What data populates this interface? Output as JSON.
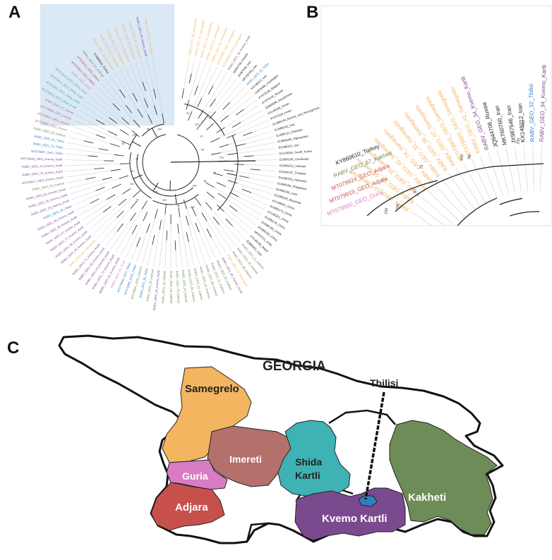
{
  "panels": {
    "a": "A",
    "b": "B",
    "c": "C"
  },
  "colors": {
    "samegrelo": "#f3b560",
    "imereti": "#b4706b",
    "guria": "#d97cc3",
    "adjara": "#c8504c",
    "shida_kartli": "#3fb2b3",
    "kvemo_kartli": "#7b4a8e",
    "kakheti": "#6e8c58",
    "tbilisi": "#2e7fc4",
    "reference": "#222222",
    "highlight": "#dbe8f6"
  },
  "map": {
    "country": "GEORGIA",
    "regions": {
      "samegrelo": "Samegrelo",
      "imereti": "Imereti",
      "guria": "Guria",
      "adjara": "Adjara",
      "shida_kartli": "Shida\nKartli",
      "shida_kartli_l1": "Shida",
      "shida_kartli_l2": "Kartli",
      "kvemo_kartli": "Kvemo Kartli",
      "kakheti": "Kakheti",
      "tbilisi": "Tbilisi"
    }
  },
  "tree_a": {
    "tips": [
      {
        "label": "RABV_GEO_60_Samegrelo",
        "region": "samegrelo"
      },
      {
        "label": "RABV_GEO_34_Kvemo_Kartli",
        "region": "kvemo_kartli"
      },
      {
        "label": "RABV_GEO_36_Samegrelo",
        "region": "samegrelo"
      },
      {
        "label": "RABV_GEO_33_Samegrelo",
        "region": "samegrelo"
      },
      {
        "label": "RABV_GEO_74_Samegrelo",
        "region": "samegrelo"
      },
      {
        "label": "RABV_GEO_56_Samegrelo",
        "region": "samegrelo"
      },
      {
        "label": "RABV_GEO_42_Samegrelo",
        "region": "samegrelo"
      },
      {
        "label": "RABV_GEO_10_Samegrelo",
        "region": "samegrelo"
      },
      {
        "label": "KY860610_Turkey",
        "region": "reference"
      },
      {
        "label": "RABV_GEO_67_Kakheti",
        "region": "kakheti"
      },
      {
        "label": "MT079924_GEO_Adjara",
        "region": "adjara"
      },
      {
        "label": "MT079919_GEO_Adjara",
        "region": "adjara"
      },
      {
        "label": "RABV_GEO_Guria",
        "region": "guria"
      },
      {
        "label": "MT079913_GEO_Shida_Kartli",
        "region": "shida_kartli"
      },
      {
        "label": "MT079912_GEO_Shida_Kartli",
        "region": "shida_kartli"
      },
      {
        "label": "MT079911_GEO_Shida_Kartli",
        "region": "shida_kartli"
      },
      {
        "label": "MT079910_GEO_Shida_Kartli",
        "region": "shida_kartli"
      },
      {
        "label": "RABV_GEO_97_Imereti",
        "region": "imereti"
      },
      {
        "label": "MT079895_GEO_Imereti",
        "region": "imereti"
      },
      {
        "label": "MT079904_GEO_Imereti",
        "region": "imereti"
      },
      {
        "label": "MT079891_GEO_Imereti",
        "region": "imereti"
      },
      {
        "label": "RABV_GEO_58_Kakheti",
        "region": "kakheti"
      },
      {
        "label": "RABV_GEO_41_Tbilisi",
        "region": "tbilisi"
      },
      {
        "label": "RABV_GEO_70_Tbilisi",
        "region": "tbilisi"
      },
      {
        "label": "MT079887_GEO_Tbilisi",
        "region": "tbilisi"
      },
      {
        "label": "MT079884_GEO_Kvemo_Kartli",
        "region": "kvemo_kartli"
      },
      {
        "label": "RABV_GEO_12_Kvemo_Kartli",
        "region": "kvemo_kartli"
      },
      {
        "label": "RABV_GEO_75_Kvemo_Kartli",
        "region": "kvemo_kartli"
      },
      {
        "label": "MT079917_GEO_Kvemo_Kartli",
        "region": "kvemo_kartli"
      },
      {
        "label": "RABV_GEO_54_Kakheti",
        "region": "kakheti"
      },
      {
        "label": "RABV_GEO_03_Kvemo_Kartli",
        "region": "kvemo_kartli"
      },
      {
        "label": "RABV_GEO_25_Kvemo_Kartli",
        "region": "kvemo_kartli"
      },
      {
        "label": "RABV_GEO_19_Kvemo_Kartli",
        "region": "kvemo_kartli"
      },
      {
        "label": "RABV_GEO_28_Tbilisi",
        "region": "tbilisi"
      },
      {
        "label": "RABV_GEO_46_Kvemo_Kartli",
        "region": "kvemo_kartli"
      },
      {
        "label": "RABV_GEO_39_Kvemo_Kartli",
        "region": "kvemo_kartli"
      },
      {
        "label": "RABV_GEO_57_Kvemo_Kartli",
        "region": "kvemo_kartli"
      },
      {
        "label": "RABV_GEO_77_Kvemo_Kartli",
        "region": "kvemo_kartli"
      },
      {
        "label": "RABV_GEO_49_Kvemo_Kartli",
        "region": "kvemo_kartli"
      },
      {
        "label": "RABV_GEO_15_Kvemo_Kartli",
        "region": "kvemo_kartli"
      },
      {
        "label": "RABV_GEO_82_Samegrelo",
        "region": "samegrelo"
      },
      {
        "label": "RABV_GEO_71_Kvemo_Kartli",
        "region": "kvemo_kartli"
      },
      {
        "label": "RABV_GEO_92_Kvemo_Kartli",
        "region": "kvemo_kartli"
      },
      {
        "label": "RABV_GEO_53_Kvemo_Kartli",
        "region": "kvemo_kartli"
      },
      {
        "label": "RABV_GEO_72_Kvemo_Kartli",
        "region": "kvemo_kartli"
      },
      {
        "label": "RABV_GEO_61_Kvemo_Kartli",
        "region": "kvemo_kartli"
      },
      {
        "label": "RABV_GEO_64_Guria",
        "region": "guria"
      },
      {
        "label": "MT079898_GEO_Tbilisi",
        "region": "tbilisi"
      },
      {
        "label": "MT079882_GEO_Tbilisi",
        "region": "tbilisi"
      },
      {
        "label": "MT079881_GEO_Kakheti",
        "region": "kakheti"
      },
      {
        "label": "RABV_GEO_93_Tbilisi",
        "region": "tbilisi"
      },
      {
        "label": "RABV_GEO_87_Kakheti",
        "region": "kakheti"
      },
      {
        "label": "RABV_GEO_26_Kvemo_Kartli",
        "region": "kvemo_kartli"
      },
      {
        "label": "RABV_GEO_43_Kakheti",
        "region": "kakheti"
      },
      {
        "label": "RABV_GEO_09_Kakheti",
        "region": "kakheti"
      },
      {
        "label": "RABV_GEO_79_Kakheti",
        "region": "kakheti"
      },
      {
        "label": "RABV_GEO_24_Kakheti",
        "region": "kakheti"
      },
      {
        "label": "RABV_GEO_66_Kakheti",
        "region": "kakheti"
      },
      {
        "label": "RABV_GEO_13_Kakheti",
        "region": "kakheti"
      },
      {
        "label": "RABV_GEO_18_Kakheti",
        "region": "kakheti"
      },
      {
        "label": "RABV_GEO_59_Kakheti",
        "region": "kakheti"
      },
      {
        "label": "RABV_GEO_22_Kakheti",
        "region": "kakheti"
      },
      {
        "label": "RABV_GEO_05_Kakheti",
        "region": "kakheti"
      },
      {
        "label": "RABV_GEO_95_Kvemo_Kartli",
        "region": "kvemo_kartli"
      },
      {
        "label": "RABV_GEO_16_Samegrelo",
        "region": "samegrelo"
      },
      {
        "label": "RABV_GEO_48_Kakheti",
        "region": "kakheti"
      },
      {
        "label": "RABV_GEO_02_Kakheti",
        "region": "kakheti"
      },
      {
        "label": "RABV_GEO_11_Kakheti",
        "region": "kakheti"
      },
      {
        "label": "JQ685902_USA",
        "region": "reference"
      },
      {
        "label": "KX148108_Nepal",
        "region": "reference"
      },
      {
        "label": "MF374721_India",
        "region": "reference"
      },
      {
        "label": "EU086181_China",
        "region": "reference"
      },
      {
        "label": "EU086190_China",
        "region": "reference"
      },
      {
        "label": "EU086176_China",
        "region": "reference"
      },
      {
        "label": "KX148261_China",
        "region": "reference"
      },
      {
        "label": "EU086173_China",
        "region": "reference"
      },
      {
        "label": "KX148254_China",
        "region": "reference"
      },
      {
        "label": "EU086165_Myanmar",
        "region": "reference"
      },
      {
        "label": "EU086160_Laos",
        "region": "reference"
      },
      {
        "label": "EU086169_Philippines",
        "region": "reference"
      },
      {
        "label": "EU086153_Indonesia",
        "region": "reference"
      },
      {
        "label": "EU086157_Thailand",
        "region": "reference"
      },
      {
        "label": "EU086152_Vietnam",
        "region": "reference"
      },
      {
        "label": "EU086146_Cambodia",
        "region": "reference"
      },
      {
        "label": "KX148263_South_Korea",
        "region": "reference"
      },
      {
        "label": "EU086151_Iran",
        "region": "reference"
      },
      {
        "label": "EU086149_Afghanistan",
        "region": "reference"
      },
      {
        "label": "EU086121_Pakistan",
        "region": "reference"
      },
      {
        "label": "EU086143_Iraq",
        "region": "reference"
      },
      {
        "label": "EU086144_Bosnia_and_Herzegovina",
        "region": "reference"
      },
      {
        "label": "KY979118_Israel",
        "region": "reference"
      },
      {
        "label": "KX148196_Oman",
        "region": "reference"
      },
      {
        "label": "JQ685936_Kazakhstan",
        "region": "reference"
      },
      {
        "label": "KY979132_Russia",
        "region": "reference"
      },
      {
        "label": "KY979146_Belgium",
        "region": "reference"
      },
      {
        "label": "LN879480_Azerbaijan",
        "region": "reference"
      },
      {
        "label": "KX148212_Iran",
        "region": "reference"
      },
      {
        "label": "RABV_GEO_32_Tbilisi",
        "region": "tbilisi"
      },
      {
        "label": "MK760760_Iran",
        "region": "reference"
      },
      {
        "label": "JX987546_Iran",
        "region": "reference"
      },
      {
        "label": "JQ944706_Russia",
        "region": "reference"
      },
      {
        "label": "RABV_GEO_34_Kvemo_Kartli",
        "region": "kvemo_kartli"
      },
      {
        "label": "MT079920_GEO_Samegrelo",
        "region": "samegrelo"
      },
      {
        "label": "MT079905_GEO_Samegrelo",
        "region": "samegrelo"
      },
      {
        "label": "RABV_GEO_55_Samegrelo",
        "region": "samegrelo"
      },
      {
        "label": "RABV_GEO_07_Samegrelo",
        "region": "samegrelo"
      },
      {
        "label": "RABV_GEO_20_Samegrelo",
        "region": "samegrelo"
      },
      {
        "label": "RABV_GEO_41_Samegrelo",
        "region": "samegrelo"
      },
      {
        "label": "RABV_GEO_29_Samegrelo",
        "region": "samegrelo"
      }
    ],
    "support": [
      "100",
      "96",
      "100",
      "98",
      "71",
      "87",
      "100",
      "92",
      "85",
      "100",
      "95",
      "100",
      "100",
      "94",
      "95",
      "100",
      "99",
      "91",
      "100",
      "93"
    ]
  },
  "tree_b": {
    "tips": [
      {
        "label": "RABV_GEO_10_Samegrelo",
        "region": "samegrelo"
      },
      {
        "label": "RABV_GEO_56_Samegrelo",
        "region": "samegrelo"
      },
      {
        "label": "RABV_GEO_25_Samegrelo",
        "region": "samegrelo"
      },
      {
        "label": "RABV_GEO_42_Samegrelo",
        "region": "samegrelo"
      },
      {
        "label": "RABV_GEO_74_Samegrelo",
        "region": "samegrelo"
      },
      {
        "label": "RABV_GEO_33_Samegrelo",
        "region": "samegrelo"
      },
      {
        "label": "RABV_GEO_36_Samegrelo",
        "region": "samegrelo"
      },
      {
        "label": "RABV_GEO_07_Samegrelo",
        "region": "samegrelo"
      },
      {
        "label": "MT079905_GEO_Samegrelo",
        "region": "samegrelo"
      },
      {
        "label": "MT079920_GEO_Samegrelo",
        "region": "samegrelo"
      },
      {
        "label": "RABV_GEO_41_Samegrelo",
        "region": "samegrelo"
      },
      {
        "label": "RABV_GEO_34_Kvemo_Kartli",
        "region": "kvemo_kartli"
      },
      {
        "label": "JQ944706_Russia",
        "region": "reference"
      },
      {
        "label": "MK760760_Iran",
        "region": "reference"
      },
      {
        "label": "JX987546_Iran",
        "region": "reference"
      },
      {
        "label": "KX148212_Iran",
        "region": "reference"
      },
      {
        "label": "RABV_GEO_32_Tbilisi",
        "region": "tbilisi"
      },
      {
        "label": "RABV_GEO_34_Kvemo_Kartli",
        "region": "kvemo_kartli"
      }
    ],
    "extra_tips": [
      {
        "label": "KY860610_Turkey",
        "region": "reference"
      },
      {
        "label": "RABV_GEO_67_Kakheti",
        "region": "kakheti"
      },
      {
        "label": "MT079924_GEO_Adjara",
        "region": "adjara"
      },
      {
        "label": "MT079919_GEO_Adjara",
        "region": "adjara"
      },
      {
        "label": "MT079900_GEO_Guria",
        "region": "guria"
      }
    ],
    "support": [
      "100",
      "100",
      "100",
      "99",
      "73",
      "57",
      "100",
      "100"
    ]
  }
}
